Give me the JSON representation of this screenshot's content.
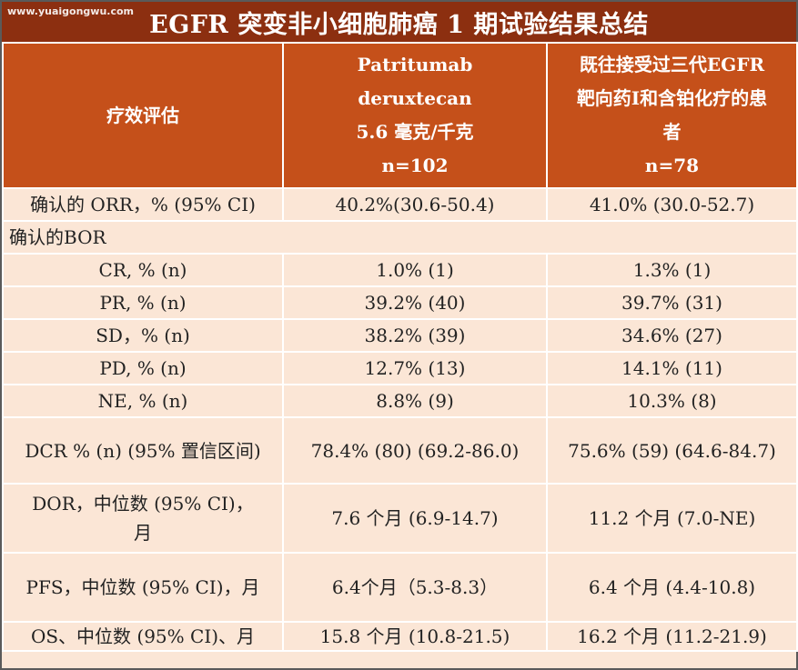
{
  "title": "EGFR 突变非小细胞肺癌 1 期试验结果总结",
  "watermark": "www.yuaigongwu.com",
  "header": {
    "col1": "疗效评估",
    "col2_lines": [
      "Patritumab",
      "deruxtecan",
      "5.6 毫克/千克",
      "n=102"
    ],
    "col3_lines": [
      "既往接受过三代EGFR",
      "靶向药I和含铂化疗的患",
      "者",
      "n=78"
    ]
  },
  "rows": [
    {
      "label": "确认的 ORR，% (95% CI)",
      "v1": "40.2%(30.6-50.4)",
      "v2": "41.0% (30.0-52.7)"
    },
    {
      "section": "确认的BOR"
    },
    {
      "label": "CR, % (n)",
      "v1": "1.0% (1)",
      "v2": "1.3% (1)"
    },
    {
      "label": "PR, % (n)",
      "v1": "39.2% (40)",
      "v2": "39.7% (31)"
    },
    {
      "label": "SD，% (n)",
      "v1": "38.2% (39)",
      "v2": "34.6% (27)"
    },
    {
      "label": "PD, % (n)",
      "v1": "12.7% (13)",
      "v2": "14.1% (11)"
    },
    {
      "label": "NE, % (n)",
      "v1": "8.8% (9)",
      "v2": "10.3% (8)"
    },
    {
      "label": "DCR % (n) (95% 置信区间)",
      "v1": "78.4% (80) (69.2-86.0)",
      "v2": "75.6% (59) (64.6-84.7)"
    },
    {
      "label_lines": [
        "DOR，中位数 (95% CI)，",
        "月"
      ],
      "v1": "7.6 个月 (6.9-14.7)",
      "v2": "11.2 个月 (7.0-NE)"
    },
    {
      "label": "PFS，中位数 (95% CI)，月",
      "v1": "6.4个月（5.3-8.3）",
      "v2": "6.4 个月 (4.4-10.8)"
    },
    {
      "label": "OS、中位数 (95% CI)、月",
      "v1": "15.8 个月 (10.8-21.5)",
      "v2": "16.2 个月 (11.2-21.9)"
    }
  ],
  "colors": {
    "title_bg": "#8c2f10",
    "header_bg": "#c5501a",
    "row_bg": "#fbe6d6",
    "grid": "#ffffff"
  }
}
